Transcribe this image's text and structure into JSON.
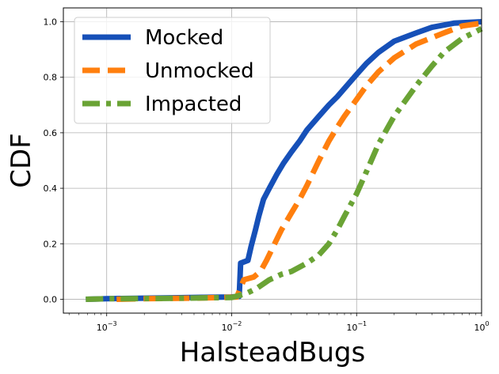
{
  "chart_data": {
    "type": "line",
    "xscale": "log",
    "xlabel": "HalsteadBugs",
    "ylabel": "CDF",
    "xlim": [
      0.00045,
      1.0
    ],
    "ylim": [
      -0.05,
      1.05
    ],
    "grid": true,
    "legend_position": "upper-left",
    "x_ticks": [
      {
        "value": 0.001,
        "base": "10",
        "exp": "−3"
      },
      {
        "value": 0.01,
        "base": "10",
        "exp": "−2"
      },
      {
        "value": 0.1,
        "base": "10",
        "exp": "−1"
      },
      {
        "value": 1.0,
        "base": "10",
        "exp": "0"
      }
    ],
    "y_ticks": [
      "0.0",
      "0.2",
      "0.4",
      "0.6",
      "0.8",
      "1.0"
    ],
    "series": [
      {
        "name": "Mocked",
        "color": "#1650b8",
        "style": "solid",
        "points": [
          [
            0.00068,
            0.0
          ],
          [
            0.001,
            0.002
          ],
          [
            0.003,
            0.005
          ],
          [
            0.006,
            0.007
          ],
          [
            0.0098,
            0.008
          ],
          [
            0.0115,
            0.01
          ],
          [
            0.0118,
            0.13
          ],
          [
            0.0135,
            0.14
          ],
          [
            0.0143,
            0.19
          ],
          [
            0.0155,
            0.25
          ],
          [
            0.0165,
            0.3
          ],
          [
            0.018,
            0.36
          ],
          [
            0.02,
            0.4
          ],
          [
            0.023,
            0.45
          ],
          [
            0.026,
            0.49
          ],
          [
            0.03,
            0.53
          ],
          [
            0.035,
            0.57
          ],
          [
            0.04,
            0.61
          ],
          [
            0.05,
            0.66
          ],
          [
            0.06,
            0.7
          ],
          [
            0.07,
            0.73
          ],
          [
            0.08,
            0.76
          ],
          [
            0.1,
            0.81
          ],
          [
            0.12,
            0.85
          ],
          [
            0.15,
            0.89
          ],
          [
            0.2,
            0.93
          ],
          [
            0.3,
            0.96
          ],
          [
            0.4,
            0.98
          ],
          [
            0.6,
            0.995
          ],
          [
            1.0,
            1.0
          ]
        ]
      },
      {
        "name": "Unmocked",
        "color": "#ff7f0e",
        "style": "dashed",
        "points": [
          [
            0.0012,
            0.0
          ],
          [
            0.002,
            0.002
          ],
          [
            0.005,
            0.004
          ],
          [
            0.008,
            0.006
          ],
          [
            0.011,
            0.008
          ],
          [
            0.0125,
            0.07
          ],
          [
            0.015,
            0.08
          ],
          [
            0.017,
            0.1
          ],
          [
            0.019,
            0.14
          ],
          [
            0.021,
            0.18
          ],
          [
            0.025,
            0.25
          ],
          [
            0.03,
            0.31
          ],
          [
            0.035,
            0.36
          ],
          [
            0.04,
            0.41
          ],
          [
            0.05,
            0.5
          ],
          [
            0.06,
            0.57
          ],
          [
            0.07,
            0.62
          ],
          [
            0.08,
            0.66
          ],
          [
            0.1,
            0.72
          ],
          [
            0.12,
            0.77
          ],
          [
            0.15,
            0.82
          ],
          [
            0.2,
            0.87
          ],
          [
            0.3,
            0.92
          ],
          [
            0.5,
            0.96
          ],
          [
            0.7,
            0.985
          ],
          [
            1.0,
            0.995
          ]
        ]
      },
      {
        "name": "Impacted",
        "color": "#6aa335",
        "style": "dashdot",
        "points": [
          [
            0.00068,
            0.0
          ],
          [
            0.001,
            0.002
          ],
          [
            0.003,
            0.003
          ],
          [
            0.006,
            0.005
          ],
          [
            0.01,
            0.006
          ],
          [
            0.013,
            0.02
          ],
          [
            0.016,
            0.04
          ],
          [
            0.02,
            0.07
          ],
          [
            0.025,
            0.09
          ],
          [
            0.03,
            0.1
          ],
          [
            0.04,
            0.13
          ],
          [
            0.05,
            0.16
          ],
          [
            0.06,
            0.2
          ],
          [
            0.07,
            0.25
          ],
          [
            0.08,
            0.3
          ],
          [
            0.1,
            0.38
          ],
          [
            0.12,
            0.46
          ],
          [
            0.15,
            0.56
          ],
          [
            0.2,
            0.66
          ],
          [
            0.3,
            0.77
          ],
          [
            0.4,
            0.84
          ],
          [
            0.5,
            0.89
          ],
          [
            0.7,
            0.94
          ],
          [
            1.0,
            0.975
          ]
        ]
      }
    ]
  }
}
